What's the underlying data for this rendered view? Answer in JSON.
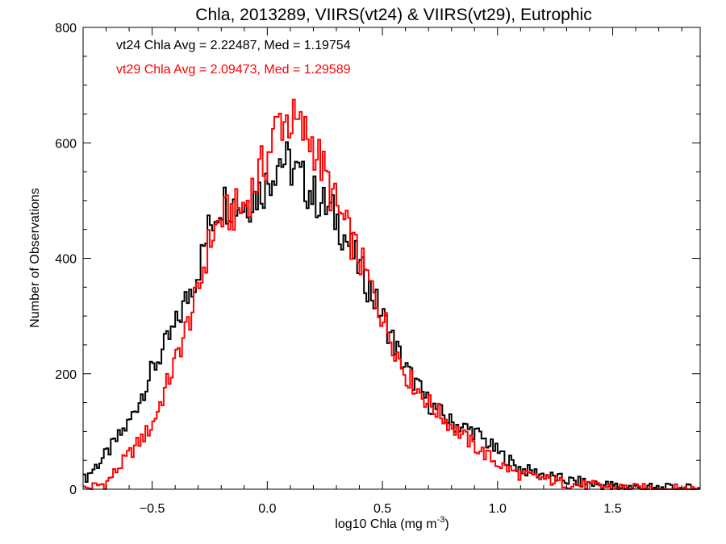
{
  "chart_data": {
    "type": "histogram",
    "title": "Chla, 2013289, VIIRS(vt24) & VIIRS(vt29), Eutrophic",
    "xlabel_main": "log10 Chla (mg m",
    "xlabel_sup": "-3",
    "xlabel_end": ")",
    "ylabel": "Number of Observations",
    "xlim": [
      -0.8,
      1.88
    ],
    "ylim": [
      0,
      800
    ],
    "x_ticks": [
      -0.5,
      0.0,
      0.5,
      1.0,
      1.5
    ],
    "x_tick_labels": [
      "−0.5",
      "0.0",
      "0.5",
      "1.0",
      "1.5"
    ],
    "y_ticks": [
      0,
      200,
      400,
      600,
      800
    ],
    "y_tick_labels": [
      "0",
      "200",
      "400",
      "600",
      "800"
    ],
    "bin_width": 0.01,
    "x_start": -0.8,
    "annotations": [
      {
        "text": "vt24 Chla Avg = 2.22487, Med = 1.19754",
        "color": "#000000"
      },
      {
        "text": "vt29 Chla Avg = 2.09473, Med = 1.29589",
        "color": "#ff0000"
      }
    ],
    "series": [
      {
        "color": "#000000",
        "anchors": [
          [
            -0.8,
            15
          ],
          [
            -0.7,
            60
          ],
          [
            -0.6,
            115
          ],
          [
            -0.5,
            205
          ],
          [
            -0.4,
            280
          ],
          [
            -0.3,
            380
          ],
          [
            -0.25,
            455
          ],
          [
            -0.2,
            500
          ],
          [
            -0.1,
            490
          ],
          [
            0.0,
            530
          ],
          [
            0.05,
            575
          ],
          [
            0.1,
            560
          ],
          [
            0.2,
            510
          ],
          [
            0.3,
            470
          ],
          [
            0.4,
            385
          ],
          [
            0.5,
            300
          ],
          [
            0.6,
            210
          ],
          [
            0.7,
            150
          ],
          [
            0.8,
            115
          ],
          [
            0.9,
            100
          ],
          [
            1.0,
            65
          ],
          [
            1.1,
            35
          ],
          [
            1.2,
            25
          ],
          [
            1.3,
            15
          ],
          [
            1.4,
            10
          ],
          [
            1.5,
            6
          ],
          [
            1.6,
            3
          ],
          [
            1.7,
            1
          ],
          [
            1.88,
            0
          ]
        ]
      },
      {
        "color": "#ff0000",
        "anchors": [
          [
            -0.8,
            0
          ],
          [
            -0.7,
            10
          ],
          [
            -0.6,
            60
          ],
          [
            -0.5,
            110
          ],
          [
            -0.4,
            220
          ],
          [
            -0.3,
            340
          ],
          [
            -0.25,
            430
          ],
          [
            -0.2,
            470
          ],
          [
            -0.1,
            490
          ],
          [
            0.0,
            575
          ],
          [
            0.05,
            640
          ],
          [
            0.1,
            640
          ],
          [
            0.2,
            600
          ],
          [
            0.3,
            490
          ],
          [
            0.4,
            400
          ],
          [
            0.5,
            300
          ],
          [
            0.6,
            200
          ],
          [
            0.7,
            150
          ],
          [
            0.8,
            110
          ],
          [
            0.9,
            75
          ],
          [
            1.0,
            45
          ],
          [
            1.1,
            25
          ],
          [
            1.2,
            18
          ],
          [
            1.3,
            10
          ],
          [
            1.4,
            6
          ],
          [
            1.5,
            3
          ],
          [
            1.6,
            1
          ],
          [
            1.7,
            0
          ],
          [
            1.88,
            0
          ]
        ]
      }
    ]
  }
}
